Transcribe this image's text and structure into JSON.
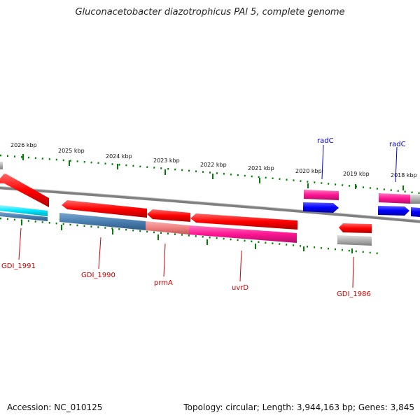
{
  "title": "Gluconacetobacter diazotrophicus PAl 5, complete genome",
  "footer": {
    "accession": "Accession: NC_010125",
    "summary": "Topology: circular; Length: 3,944,163 bp; Genes: 3,845"
  },
  "ticks": [
    "2026 kbp",
    "2025 kbp",
    "2024 kbp",
    "2023 kbp",
    "2022 kbp",
    "2021 kbp",
    "2020 kbp",
    "2019 kbp",
    "2018 kbp"
  ],
  "gene_labels": [
    "GDI_1991",
    "GDI_1990",
    "prmA",
    "uvrD",
    "GDI_1986",
    "radC",
    "radC"
  ],
  "colors": {
    "forward_gene": "#ff0000",
    "cds_pink": "#ff1493",
    "cds_blue": "#0000ff",
    "cds_steel": "#4a7fb0",
    "cds_cyan": "#00e5ff",
    "cds_salmon": "#f08080",
    "cds_gray": "#b0b0b0",
    "backbone": "#808080",
    "tick": "#008000",
    "label_red": "#cc0000",
    "label_blue": "#0000cc"
  }
}
